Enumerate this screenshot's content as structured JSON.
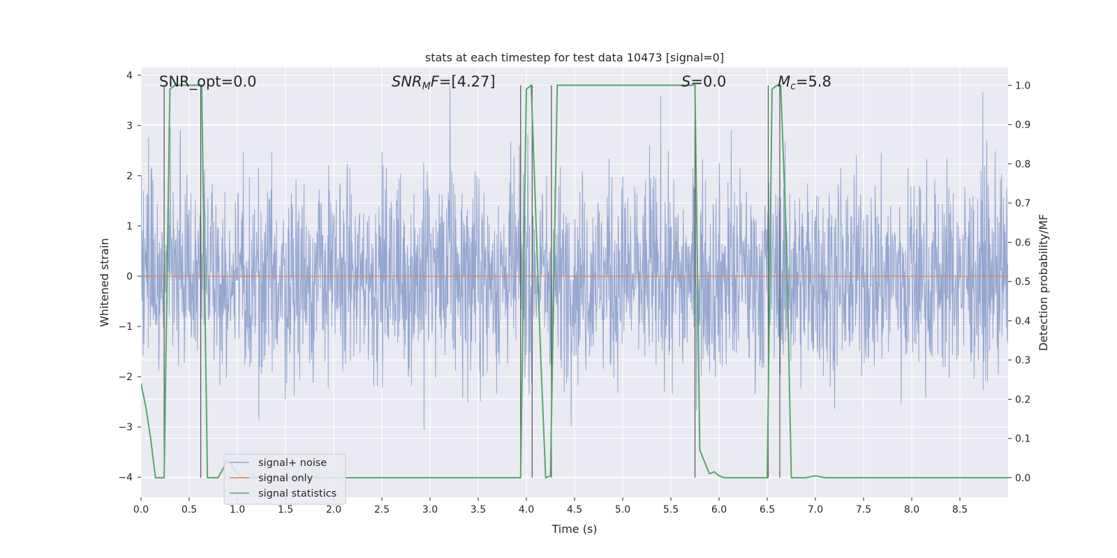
{
  "chart_data": {
    "type": "line",
    "title": "stats at each timestep for test data 10473 [signal=0]",
    "xlabel": "Time (s)",
    "ylabel_left": "Whitened strain",
    "ylabel_right": "Detection probability/MF",
    "xlim": [
      0.0,
      9.0
    ],
    "ylim_left": [
      -4.4,
      4.15
    ],
    "ylim_right": [
      -0.05,
      1.045
    ],
    "x_ticks": [
      "0.0",
      "0.5",
      "1.0",
      "1.5",
      "2.0",
      "2.5",
      "3.0",
      "3.5",
      "4.0",
      "4.5",
      "5.0",
      "5.5",
      "6.0",
      "6.5",
      "7.0",
      "7.5",
      "8.0",
      "8.5"
    ],
    "x_tick_values": [
      0.0,
      0.5,
      1.0,
      1.5,
      2.0,
      2.5,
      3.0,
      3.5,
      4.0,
      4.5,
      5.0,
      5.5,
      6.0,
      6.5,
      7.0,
      7.5,
      8.0,
      8.5
    ],
    "y_left_ticks": [
      "−4",
      "−3",
      "−2",
      "−1",
      "0",
      "1",
      "2",
      "3",
      "4"
    ],
    "y_left_tick_values": [
      -4,
      -3,
      -2,
      -1,
      0,
      1,
      2,
      3,
      4
    ],
    "y_right_ticks": [
      "0.0",
      "0.1",
      "0.2",
      "0.3",
      "0.4",
      "0.5",
      "0.6",
      "0.7",
      "0.8",
      "0.9",
      "1.0"
    ],
    "y_right_tick_values": [
      0.0,
      0.1,
      0.2,
      0.3,
      0.4,
      0.5,
      0.6,
      0.7,
      0.8,
      0.9,
      1.0
    ],
    "annotations": [
      {
        "id": "snr-opt",
        "prefix": "SNR_opt=",
        "value": "0.0",
        "x": 0.2
      },
      {
        "id": "snr-mf",
        "prefix": "SNR",
        "sub": "M",
        "suffix": "F=",
        "value": "[4.27]",
        "x": 2.6
      },
      {
        "id": "stat-s",
        "prefix": "S",
        "suffix": "=",
        "value": "0.0",
        "x": 5.6
      },
      {
        "id": "chirp-mass",
        "prefix": "M",
        "sub": "c",
        "suffix": "=",
        "value": "5.8",
        "x": 6.6
      }
    ],
    "series": [
      {
        "name": "signal+ noise",
        "color": "#8fa3cc",
        "axis": "left",
        "description": "whitened noise, amplitude roughly ±2 with spikes to ±4",
        "amplitude_range": [
          -4.0,
          3.8
        ]
      },
      {
        "name": "signal only",
        "color": "#dd8452",
        "axis": "left",
        "x": [
          0.0,
          9.0
        ],
        "y": [
          0.0,
          0.0
        ]
      },
      {
        "name": "signal statistics",
        "color": "#55a868",
        "axis": "right",
        "x": [
          0.0,
          0.05,
          0.1,
          0.15,
          0.24,
          0.3,
          0.35,
          0.4,
          0.45,
          0.5,
          0.55,
          0.6,
          0.63,
          0.69,
          0.75,
          0.8,
          0.9,
          0.95,
          1.0,
          1.05,
          1.1,
          1.5,
          2.0,
          2.5,
          3.0,
          3.5,
          3.8,
          3.94,
          4.0,
          4.05,
          4.15,
          4.2,
          4.25,
          4.32,
          4.5,
          5.0,
          5.5,
          5.75,
          5.8,
          5.9,
          5.95,
          6.0,
          6.05,
          6.3,
          6.5,
          6.55,
          6.6,
          6.64,
          6.7,
          6.75,
          6.8,
          6.9,
          7.0,
          7.1,
          7.2,
          7.5,
          8.0,
          8.5,
          9.0
        ],
        "y": [
          0.24,
          0.18,
          0.1,
          0.0,
          0.0,
          0.99,
          1.0,
          1.0,
          1.0,
          1.0,
          1.0,
          1.0,
          1.0,
          0.0,
          0.0,
          0.0,
          0.045,
          0.03,
          0.01,
          0.0,
          0.0,
          0.0,
          0.0,
          0.0,
          0.0,
          0.0,
          0.0,
          0.0,
          0.99,
          1.0,
          0.3,
          0.0,
          0.005,
          1.0,
          1.0,
          1.0,
          1.0,
          1.0,
          0.07,
          0.01,
          0.015,
          0.005,
          0.0,
          0.0,
          0.0,
          0.99,
          1.0,
          1.0,
          0.6,
          0.0,
          0.0,
          0.0,
          0.005,
          0.0,
          0.0,
          0.0,
          0.0,
          0.0,
          0.0
        ]
      }
    ],
    "vertical_markers_x": [
      0.24,
      0.62,
      3.94,
      4.06,
      4.26,
      5.75,
      6.51,
      6.63
    ],
    "legend": {
      "location": "lower-left",
      "entries": [
        {
          "label": "signal+ noise",
          "color": "#8fa3cc"
        },
        {
          "label": "signal only",
          "color": "#dd8452"
        },
        {
          "label": "signal statistics",
          "color": "#55a868"
        }
      ]
    },
    "grid": true
  }
}
